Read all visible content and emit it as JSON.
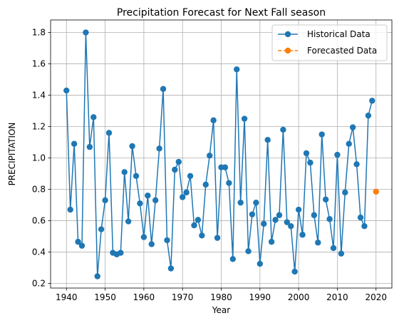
{
  "chart_data": {
    "type": "line",
    "title": "Precipitation Forecast for Next Fall season",
    "xlabel": "Year",
    "ylabel": "PRECIPITATION",
    "xlim": [
      1935.9,
      2024.1
    ],
    "ylim": [
      0.17,
      1.88
    ],
    "x_ticks": [
      1940,
      1950,
      1960,
      1970,
      1980,
      1990,
      2000,
      2010,
      2020
    ],
    "y_ticks": [
      0.2,
      0.4,
      0.6,
      0.8,
      1.0,
      1.2,
      1.4,
      1.6,
      1.8
    ],
    "x_tick_labels": [
      "1940",
      "1950",
      "1960",
      "1970",
      "1980",
      "1990",
      "2000",
      "2010",
      "2020"
    ],
    "y_tick_labels": [
      "0.2",
      "0.4",
      "0.6",
      "0.8",
      "1.0",
      "1.2",
      "1.4",
      "1.6",
      "1.8"
    ],
    "grid": true,
    "legend_position": "top-right",
    "series": [
      {
        "name": "Historical Data",
        "color": "#1f77b4",
        "line_style": "solid",
        "marker": "circle",
        "x": [
          1940,
          1941,
          1942,
          1943,
          1944,
          1945,
          1946,
          1947,
          1948,
          1949,
          1950,
          1951,
          1952,
          1953,
          1954,
          1955,
          1956,
          1957,
          1958,
          1959,
          1960,
          1961,
          1962,
          1963,
          1964,
          1965,
          1966,
          1967,
          1968,
          1969,
          1970,
          1971,
          1972,
          1973,
          1974,
          1975,
          1976,
          1977,
          1978,
          1979,
          1980,
          1981,
          1982,
          1983,
          1984,
          1985,
          1986,
          1987,
          1988,
          1989,
          1990,
          1991,
          1992,
          1993,
          1994,
          1995,
          1996,
          1997,
          1998,
          1999,
          2000,
          2001,
          2002,
          2003,
          2004,
          2005,
          2006,
          2007,
          2008,
          2009,
          2010,
          2011,
          2012,
          2013,
          2014,
          2015,
          2016,
          2017,
          2018,
          2019
        ],
        "y": [
          1.43,
          0.67,
          1.09,
          0.465,
          0.44,
          1.8,
          1.07,
          1.26,
          0.245,
          0.545,
          0.73,
          1.16,
          0.395,
          0.385,
          0.395,
          0.91,
          0.595,
          1.075,
          0.885,
          0.71,
          0.495,
          0.76,
          0.45,
          0.73,
          1.06,
          1.44,
          0.475,
          0.295,
          0.925,
          0.975,
          0.75,
          0.78,
          0.885,
          0.57,
          0.605,
          0.505,
          0.83,
          1.015,
          1.24,
          0.49,
          0.94,
          0.94,
          0.84,
          0.355,
          1.565,
          0.715,
          1.25,
          0.405,
          0.64,
          0.715,
          0.325,
          0.58,
          1.115,
          0.465,
          0.605,
          0.635,
          1.18,
          0.59,
          0.565,
          0.275,
          0.67,
          0.51,
          1.03,
          0.97,
          0.635,
          0.46,
          1.15,
          0.735,
          0.61,
          0.425,
          1.02,
          0.39,
          0.78,
          1.09,
          1.195,
          0.96,
          0.62,
          0.565,
          1.27,
          1.365
        ]
      },
      {
        "name": "Forecasted Data",
        "color": "#ff7f0e",
        "line_style": "dashed",
        "marker": "circle",
        "x": [
          2020
        ],
        "y": [
          0.785
        ]
      }
    ]
  }
}
